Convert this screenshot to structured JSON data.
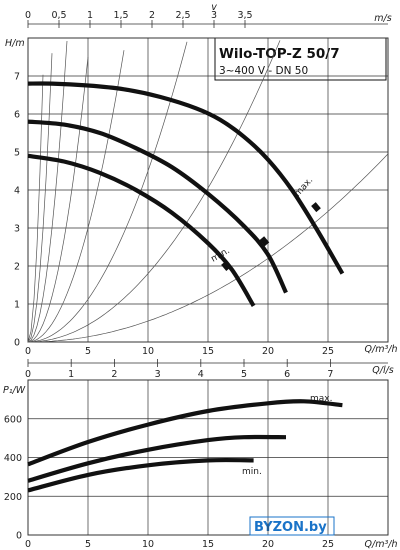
{
  "chart_data": [
    {
      "type": "line",
      "title": "Wilo-TOP-Z 50/7",
      "subtitle": "3~400 V - DN 50",
      "ylabel": "H/m",
      "xlabel": "Q/m³/h",
      "top_axis_label": "m/s",
      "top_axis_letter": "v",
      "mid_axis_label": "Q/l/s",
      "xlim": [
        0,
        30
      ],
      "ylim": [
        0,
        8
      ],
      "x_ticks": [
        "0",
        "5",
        "10",
        "15",
        "20",
        "25"
      ],
      "y_ticks": [
        "0",
        "1",
        "2",
        "3",
        "4",
        "5",
        "6",
        "7"
      ],
      "top_ticks": [
        "0",
        "0,5",
        "1",
        "1,5",
        "2",
        "2,5",
        "3",
        "3,5"
      ],
      "mid_ticks": [
        "0",
        "1",
        "2",
        "3",
        "4",
        "5",
        "6",
        "7"
      ],
      "grid": true,
      "series": [
        {
          "name": "max.",
          "x": [
            0,
            2,
            5,
            8,
            11,
            14,
            16,
            18,
            20,
            22,
            24,
            26.2
          ],
          "y": [
            6.8,
            6.8,
            6.75,
            6.65,
            6.45,
            6.15,
            5.85,
            5.4,
            4.8,
            4.0,
            3.0,
            1.8
          ]
        },
        {
          "name": "",
          "x": [
            0,
            3,
            6,
            9,
            12,
            15,
            18,
            20,
            21.5
          ],
          "y": [
            5.8,
            5.72,
            5.5,
            5.1,
            4.6,
            3.9,
            3.05,
            2.3,
            1.3
          ]
        },
        {
          "name": "min.",
          "x": [
            0,
            3,
            6,
            9,
            12,
            15,
            17,
            18.8
          ],
          "y": [
            4.9,
            4.75,
            4.45,
            4.0,
            3.4,
            2.6,
            1.9,
            0.95
          ]
        }
      ],
      "annotations": [
        "max.",
        "min."
      ]
    },
    {
      "type": "line",
      "ylabel": "P₁/W",
      "xlabel": "Q/m³/h",
      "xlim": [
        0,
        30
      ],
      "ylim": [
        0,
        800
      ],
      "x_ticks": [
        "0",
        "5",
        "10",
        "15",
        "20",
        "25"
      ],
      "y_ticks": [
        "0",
        "200",
        "400",
        "600"
      ],
      "grid": true,
      "series": [
        {
          "name": "max.",
          "x": [
            0,
            5,
            10,
            15,
            20,
            23,
            26.2
          ],
          "y": [
            365,
            480,
            570,
            640,
            680,
            690,
            670
          ]
        },
        {
          "name": "",
          "x": [
            0,
            5,
            10,
            15,
            18,
            21.5
          ],
          "y": [
            280,
            370,
            440,
            490,
            505,
            505
          ]
        },
        {
          "name": "min.",
          "x": [
            0,
            5,
            10,
            15,
            18.8
          ],
          "y": [
            230,
            310,
            360,
            385,
            385
          ]
        }
      ],
      "annotations": [
        "max.",
        "min."
      ]
    }
  ],
  "watermark": "BYZON.by",
  "colors": {
    "curve": "#111111",
    "grid": "#333333",
    "watermark": "#1a73c8"
  }
}
